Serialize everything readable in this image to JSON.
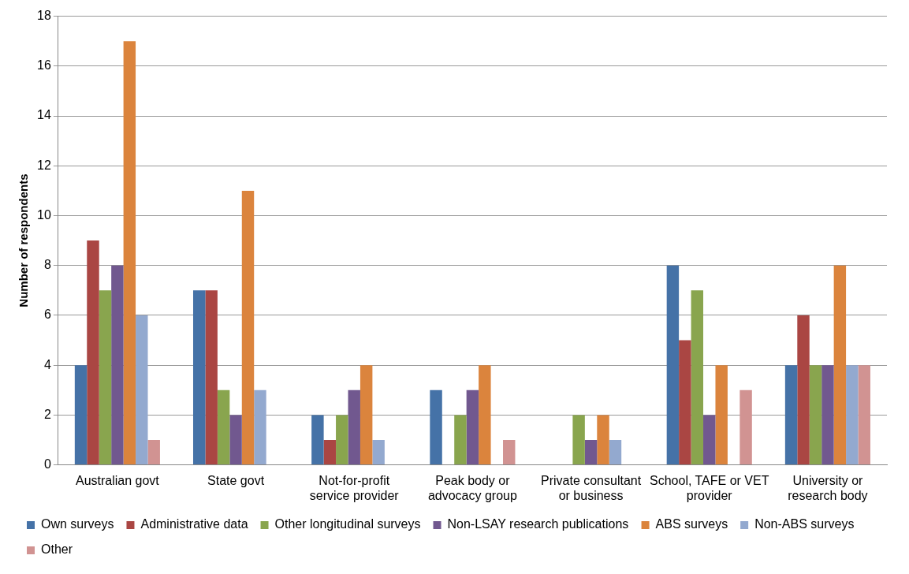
{
  "chart_data": {
    "type": "bar",
    "ylabel": "Number of respondents",
    "categories": [
      "Australian govt",
      "State govt",
      "Not-for-profit service provider",
      "Peak body or advocacy group",
      "Private consultant or business",
      "School, TAFE or VET provider",
      "University or research body"
    ],
    "series": [
      {
        "name": "Own surveys",
        "color": "#4572a7",
        "values": [
          4,
          7,
          2,
          3,
          0,
          8,
          4
        ]
      },
      {
        "name": "Administrative data",
        "color": "#aa4643",
        "values": [
          9,
          7,
          1,
          0,
          0,
          5,
          6
        ]
      },
      {
        "name": "Other longitudinal surveys",
        "color": "#89a54e",
        "values": [
          7,
          3,
          2,
          2,
          2,
          7,
          4
        ]
      },
      {
        "name": "Non-LSAY research publications",
        "color": "#71588f",
        "values": [
          8,
          2,
          3,
          3,
          1,
          2,
          4
        ]
      },
      {
        "name": "ABS surveys",
        "color": "#db843d",
        "values": [
          17,
          11,
          4,
          4,
          2,
          4,
          8
        ]
      },
      {
        "name": "Non-ABS surveys",
        "color": "#93a9cf",
        "values": [
          6,
          3,
          1,
          0,
          1,
          0,
          4
        ]
      },
      {
        "name": "Other",
        "color": "#d19392",
        "values": [
          1,
          0,
          0,
          1,
          0,
          3,
          4
        ]
      }
    ],
    "ylim": [
      0,
      18
    ],
    "yticks": [
      0,
      2,
      4,
      6,
      8,
      10,
      12,
      14,
      16,
      18
    ],
    "grid": "y",
    "legend": "bottom"
  }
}
